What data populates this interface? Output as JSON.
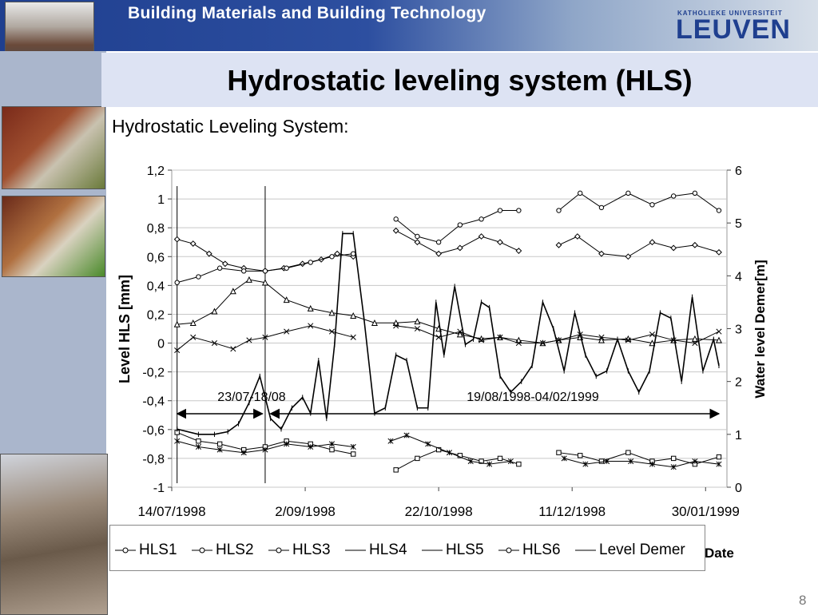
{
  "banner": {
    "title": "Building Materials and Building Technology",
    "logo_top": "KATHOLIEKE UNIVERSITEIT",
    "logo_main": "LEUVEN"
  },
  "slide": {
    "title": "Hydrostatic leveling system (HLS)",
    "subtitle": "Hydrostatic Leveling System:",
    "page_number": "8"
  },
  "colors": {
    "banner": "#1f3f8f",
    "title_band": "#dde3f3",
    "left_strip": "#aab6cc",
    "series": "#000000"
  },
  "chart_data": {
    "type": "line",
    "ylabel": "Level HLS [mm]",
    "y2label": "Water level Demer[m]",
    "xlabel": "Date",
    "ylim": [
      -1,
      1.2
    ],
    "y2lim": [
      0,
      6
    ],
    "yticks": [
      "1,2",
      "1",
      "0,8",
      "0,6",
      "0,4",
      "0,2",
      "0",
      "-0,2",
      "-0,4",
      "-0,6",
      "-0,8",
      "-1"
    ],
    "y2ticks": [
      "6",
      "5",
      "4",
      "3",
      "2",
      "1",
      "0"
    ],
    "xticks": [
      "14/07/1998",
      "2/09/1998",
      "22/10/1998",
      "11/12/1998",
      "30/01/1999"
    ],
    "xrange": [
      "1998-07-14",
      "1999-02-07"
    ],
    "grid": "horizontal",
    "legend_position": "bottom",
    "annotations": [
      {
        "text": "23/07-18/08",
        "from": "1998-07-23",
        "to": "1998-08-18"
      },
      {
        "text": "19/08/1998-04/02/1999",
        "from": "1998-08-19",
        "to": "1999-02-04"
      }
    ],
    "series": [
      {
        "name": "HLS1",
        "marker": "diamond",
        "axis": "left",
        "x": [
          "1998-07-16",
          "1998-07-22",
          "1998-07-28",
          "1998-08-03",
          "1998-08-10",
          "1998-08-18",
          "1998-08-25",
          "1998-09-01",
          "1998-09-08",
          "1998-09-14",
          "1998-09-20",
          "1998-09-26",
          "1998-10-06",
          "1998-10-14",
          "1998-10-22",
          "1998-10-30",
          "1998-11-07",
          "1998-11-14",
          "1998-11-21",
          "1998-11-30",
          "1998-12-06",
          "1998-12-13",
          "1998-12-22",
          "1999-01-01",
          "1999-01-10",
          "1999-01-18",
          "1999-01-26",
          "1999-02-04"
        ],
        "y": [
          0.72,
          0.69,
          0.62,
          0.55,
          0.52,
          0.5,
          0.52,
          0.55,
          0.58,
          0.62,
          0.6,
          null,
          0.78,
          0.7,
          0.62,
          0.66,
          0.74,
          0.7,
          0.64,
          null,
          0.68,
          0.74,
          0.62,
          0.6,
          0.7,
          0.66,
          0.68,
          0.63
        ]
      },
      {
        "name": "HLS2",
        "marker": "square",
        "axis": "left",
        "x": [
          "1998-07-16",
          "1998-07-24",
          "1998-08-01",
          "1998-08-10",
          "1998-08-18",
          "1998-08-26",
          "1998-09-04",
          "1998-09-12",
          "1998-09-20",
          "1998-09-28",
          "1998-10-06",
          "1998-10-14",
          "1998-10-22",
          "1998-10-30",
          "1998-11-07",
          "1998-11-14",
          "1998-11-21",
          "1998-11-30",
          "1998-12-06",
          "1998-12-14",
          "1998-12-22",
          "1999-01-01",
          "1999-01-10",
          "1999-01-18",
          "1999-01-26",
          "1999-02-04"
        ],
        "y": [
          -0.62,
          -0.68,
          -0.7,
          -0.74,
          -0.72,
          -0.68,
          -0.7,
          -0.74,
          -0.77,
          null,
          -0.88,
          -0.8,
          -0.74,
          -0.78,
          -0.82,
          -0.8,
          -0.84,
          null,
          -0.76,
          -0.78,
          -0.82,
          -0.76,
          -0.82,
          -0.8,
          -0.84,
          -0.79
        ]
      },
      {
        "name": "HLS3",
        "marker": "triangle",
        "axis": "left",
        "x": [
          "1998-07-16",
          "1998-07-22",
          "1998-07-30",
          "1998-08-06",
          "1998-08-12",
          "1998-08-18",
          "1998-08-26",
          "1998-09-04",
          "1998-09-12",
          "1998-09-20",
          "1998-09-28",
          "1998-10-06",
          "1998-10-14",
          "1998-10-22",
          "1998-10-30",
          "1998-11-07",
          "1998-11-14",
          "1998-11-21",
          "1998-11-30",
          "1998-12-06",
          "1998-12-14",
          "1998-12-22",
          "1999-01-01",
          "1999-01-10",
          "1999-01-18",
          "1999-01-26",
          "1999-02-04"
        ],
        "y": [
          0.13,
          0.14,
          0.22,
          0.36,
          0.44,
          0.42,
          0.3,
          0.24,
          0.21,
          0.19,
          0.14,
          0.14,
          0.15,
          0.1,
          0.06,
          0.03,
          0.04,
          0.02,
          0.0,
          0.02,
          0.04,
          0.02,
          0.03,
          0.0,
          0.02,
          0.03,
          0.02
        ]
      },
      {
        "name": "HLS4",
        "marker": "x",
        "axis": "left",
        "x": [
          "1998-07-16",
          "1998-07-22",
          "1998-07-30",
          "1998-08-06",
          "1998-08-12",
          "1998-08-18",
          "1998-08-26",
          "1998-09-04",
          "1998-09-12",
          "1998-09-20",
          "1998-09-28",
          "1998-10-06",
          "1998-10-14",
          "1998-10-22",
          "1998-10-30",
          "1998-11-07",
          "1998-11-14",
          "1998-11-21",
          "1998-11-30",
          "1998-12-06",
          "1998-12-14",
          "1998-12-22",
          "1999-01-01",
          "1999-01-10",
          "1999-01-18",
          "1999-01-26",
          "1999-02-04"
        ],
        "y": [
          -0.05,
          0.04,
          0.0,
          -0.04,
          0.02,
          0.04,
          0.08,
          0.12,
          0.08,
          0.04,
          null,
          0.12,
          0.1,
          0.04,
          0.08,
          0.02,
          0.04,
          0.0,
          0.0,
          0.02,
          0.06,
          0.04,
          0.02,
          0.06,
          0.02,
          0.0,
          0.08
        ]
      },
      {
        "name": "HLS5",
        "marker": "star",
        "axis": "left",
        "x": [
          "1998-07-16",
          "1998-07-24",
          "1998-08-01",
          "1998-08-10",
          "1998-08-18",
          "1998-08-26",
          "1998-09-04",
          "1998-09-12",
          "1998-09-20",
          "1998-09-26",
          "1998-10-04",
          "1998-10-10",
          "1998-10-18",
          "1998-10-26",
          "1998-11-03",
          "1998-11-10",
          "1998-11-18",
          "1998-11-30",
          "1998-12-08",
          "1998-12-16",
          "1998-12-24",
          "1999-01-02",
          "1999-01-10",
          "1999-01-18",
          "1999-01-26",
          "1999-02-04"
        ],
        "y": [
          -0.68,
          -0.72,
          -0.74,
          -0.76,
          -0.74,
          -0.7,
          -0.72,
          -0.7,
          -0.72,
          null,
          -0.68,
          -0.64,
          -0.7,
          -0.76,
          -0.82,
          -0.84,
          -0.82,
          null,
          -0.8,
          -0.84,
          -0.82,
          -0.82,
          -0.84,
          -0.86,
          -0.82,
          -0.84
        ]
      },
      {
        "name": "HLS6",
        "marker": "circle",
        "axis": "left",
        "x": [
          "1998-07-16",
          "1998-07-24",
          "1998-08-01",
          "1998-08-10",
          "1998-08-18",
          "1998-08-26",
          "1998-09-04",
          "1998-09-12",
          "1998-09-20",
          "1998-09-28",
          "1998-10-06",
          "1998-10-14",
          "1998-10-22",
          "1998-10-30",
          "1998-11-07",
          "1998-11-14",
          "1998-11-21",
          "1998-11-30",
          "1998-12-06",
          "1998-12-14",
          "1998-12-22",
          "1999-01-01",
          "1999-01-10",
          "1999-01-18",
          "1999-01-26",
          "1999-02-04"
        ],
        "y": [
          0.42,
          0.46,
          0.52,
          0.5,
          0.5,
          0.52,
          0.56,
          0.6,
          0.62,
          null,
          0.86,
          0.74,
          0.7,
          0.82,
          0.86,
          0.92,
          0.92,
          null,
          0.92,
          1.04,
          0.94,
          1.04,
          0.96,
          1.02,
          1.04,
          0.92
        ]
      },
      {
        "name": "Level Demer",
        "marker": "plus",
        "axis": "right",
        "x": [
          "1998-07-16",
          "1998-07-24",
          "1998-07-30",
          "1998-08-04",
          "1998-08-08",
          "1998-08-12",
          "1998-08-16",
          "1998-08-20",
          "1998-08-24",
          "1998-08-28",
          "1998-09-01",
          "1998-09-04",
          "1998-09-07",
          "1998-09-10",
          "1998-09-13",
          "1998-09-16",
          "1998-09-20",
          "1998-09-24",
          "1998-09-28",
          "1998-10-02",
          "1998-10-06",
          "1998-10-10",
          "1998-10-14",
          "1998-10-18",
          "1998-10-21",
          "1998-10-24",
          "1998-10-28",
          "1998-11-01",
          "1998-11-04",
          "1998-11-07",
          "1998-11-10",
          "1998-11-14",
          "1998-11-18",
          "1998-11-22",
          "1998-11-26",
          "1998-11-30",
          "1998-12-04",
          "1998-12-08",
          "1998-12-12",
          "1998-12-16",
          "1998-12-20",
          "1998-12-24",
          "1998-12-28",
          "1999-01-01",
          "1999-01-05",
          "1999-01-09",
          "1999-01-13",
          "1999-01-17",
          "1999-01-21",
          "1999-01-25",
          "1999-01-29",
          "1999-02-02",
          "1999-02-04"
        ],
        "y": [
          1.1,
          1.0,
          1.0,
          1.05,
          1.2,
          1.6,
          2.1,
          1.3,
          1.1,
          1.5,
          1.7,
          1.4,
          2.4,
          1.3,
          2.7,
          4.8,
          4.8,
          3.2,
          1.4,
          1.5,
          2.5,
          2.4,
          1.5,
          1.5,
          3.5,
          2.5,
          3.8,
          2.7,
          2.8,
          3.5,
          3.4,
          2.1,
          1.8,
          2.0,
          2.3,
          3.5,
          3.0,
          2.2,
          3.3,
          2.5,
          2.1,
          2.2,
          2.8,
          2.2,
          1.8,
          2.2,
          3.3,
          3.2,
          2.0,
          3.6,
          2.2,
          2.8,
          2.3
        ]
      }
    ]
  }
}
